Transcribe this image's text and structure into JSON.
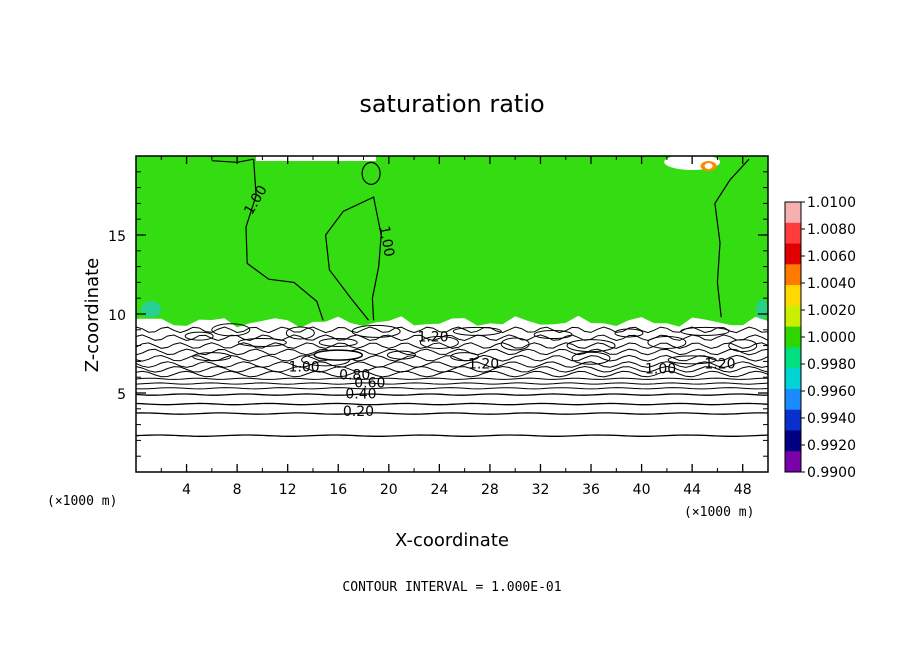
{
  "chart_data": {
    "type": "heatmap",
    "title": "saturation ratio",
    "xlabel": "X-coordinate",
    "ylabel": "Z-coordinate",
    "x_unit": "(×1000 m)",
    "x_unit_right": "(×1000 m)",
    "xlim": [
      0,
      50
    ],
    "ylim": [
      0,
      20
    ],
    "x_ticks": [
      4,
      8,
      12,
      16,
      20,
      24,
      28,
      32,
      36,
      40,
      44,
      48
    ],
    "y_ticks": [
      5,
      10,
      15
    ],
    "footer": "CONTOUR INTERVAL = 1.000E-01",
    "colorbar": {
      "labels": [
        "1.0100",
        "1.0080",
        "1.0060",
        "1.0040",
        "1.0020",
        "1.0000",
        "0.9980",
        "0.9960",
        "0.9940",
        "0.9920",
        "0.9900"
      ],
      "colors": [
        "#f6b0b0",
        "#ff3d3d",
        "#e00000",
        "#ff7a00",
        "#ffd800",
        "#c8f000",
        "#2fd600",
        "#00e080",
        "#00d4d4",
        "#1a8cff",
        "#0a2fcc",
        "#000080",
        "#7a00a8"
      ]
    },
    "field_colors": {
      "upper": "#33dd11",
      "lower": "#ffffff"
    },
    "contour_labels": [
      {
        "text": "1.00",
        "x": 9.5,
        "z": 17.2,
        "rot": -60
      },
      {
        "text": "1.00",
        "x": 19.8,
        "z": 14.6,
        "rot": 80
      },
      {
        "text": "1.20",
        "x": 23.5,
        "z": 8.5,
        "rot": 0
      },
      {
        "text": "1.20",
        "x": 27.5,
        "z": 6.8,
        "rot": 0
      },
      {
        "text": "1.20",
        "x": 46.2,
        "z": 6.8,
        "rot": 0
      },
      {
        "text": "1.00",
        "x": 13.3,
        "z": 6.6,
        "rot": 0
      },
      {
        "text": "1.00",
        "x": 41.5,
        "z": 6.5,
        "rot": 0
      },
      {
        "text": "0.80",
        "x": 17.3,
        "z": 6.1,
        "rot": 0
      },
      {
        "text": "0.60",
        "x": 18.5,
        "z": 5.6,
        "rot": 0
      },
      {
        "text": "0.40",
        "x": 17.8,
        "z": 4.9,
        "rot": 0
      },
      {
        "text": "0.20",
        "x": 17.6,
        "z": 3.8,
        "rot": 0
      }
    ]
  }
}
